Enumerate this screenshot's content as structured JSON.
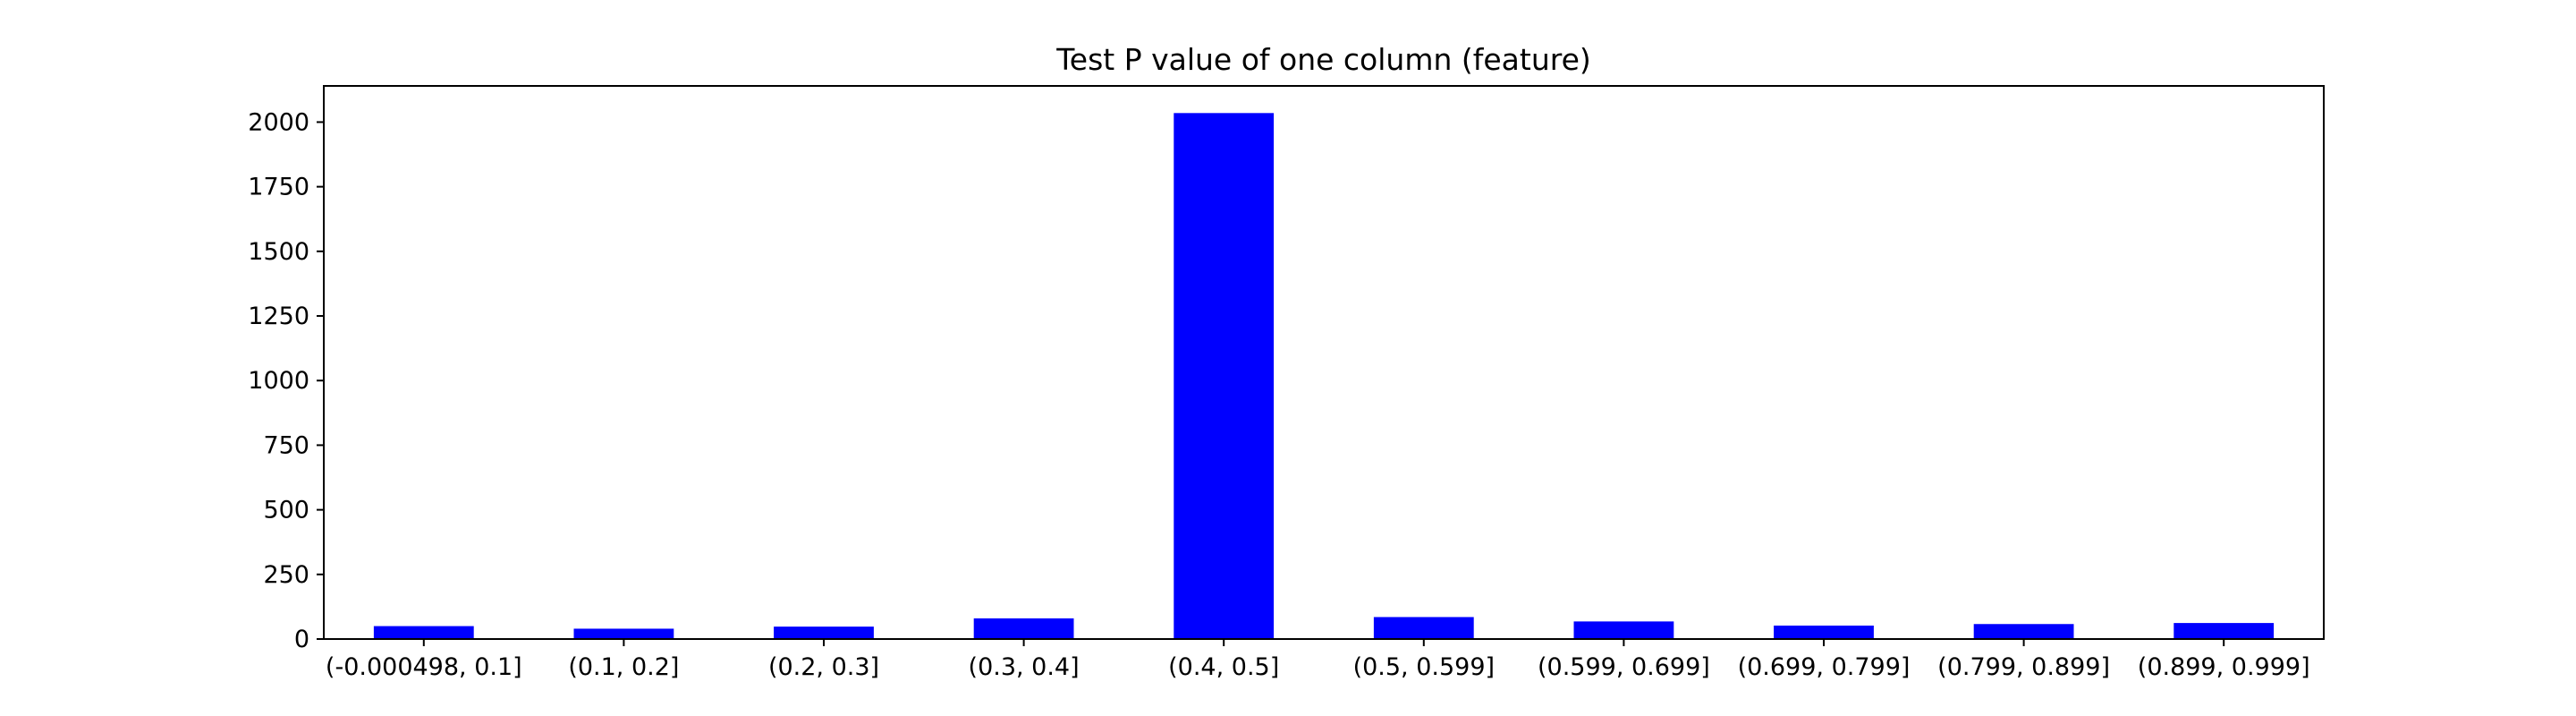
{
  "chart_data": {
    "type": "bar",
    "title": "Test P value of one column (feature)",
    "xlabel": "",
    "ylabel": "",
    "categories": [
      "(-0.000498, 0.1]",
      "(0.1, 0.2]",
      "(0.2, 0.3]",
      "(0.3, 0.4]",
      "(0.4, 0.5]",
      "(0.5, 0.599]",
      "(0.599, 0.699]",
      "(0.699, 0.799]",
      "(0.799, 0.899]",
      "(0.899, 0.999]"
    ],
    "values": [
      50,
      40,
      48,
      80,
      2035,
      85,
      68,
      52,
      58,
      62
    ],
    "ylim": [
      0,
      2140
    ],
    "yticks": [
      0,
      250,
      500,
      750,
      1000,
      1250,
      1500,
      1750,
      2000
    ],
    "grid": false,
    "legend": "none",
    "bar_color": "#0000ff"
  }
}
